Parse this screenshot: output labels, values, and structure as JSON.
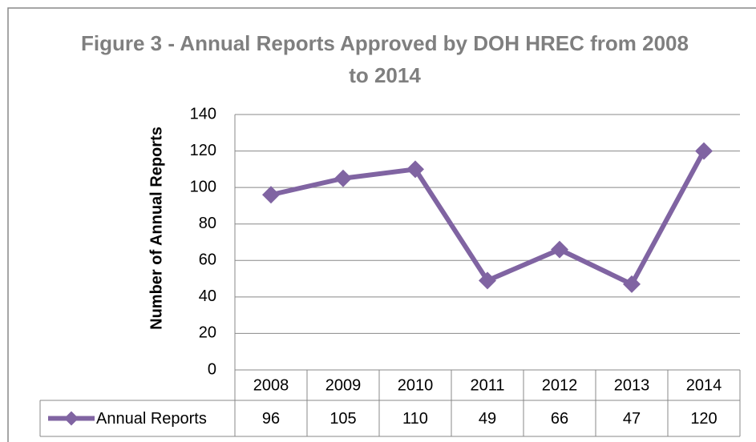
{
  "chart_data": {
    "type": "line",
    "title": "Figure 3 - Annual Reports Approved by DOH HREC from 2008 to 2014",
    "y_label": "Number of Annual Reports",
    "categories": [
      "2008",
      "2009",
      "2010",
      "2011",
      "2012",
      "2013",
      "2014"
    ],
    "series": [
      {
        "name": "Annual Reports",
        "color": "#8064a2",
        "values": [
          96,
          105,
          110,
          49,
          66,
          47,
          120
        ]
      }
    ],
    "ylim": [
      0,
      140
    ],
    "yticks": [
      0,
      20,
      40,
      60,
      80,
      100,
      120,
      140
    ],
    "grid": true,
    "legend": "bottom",
    "data_table": true
  }
}
